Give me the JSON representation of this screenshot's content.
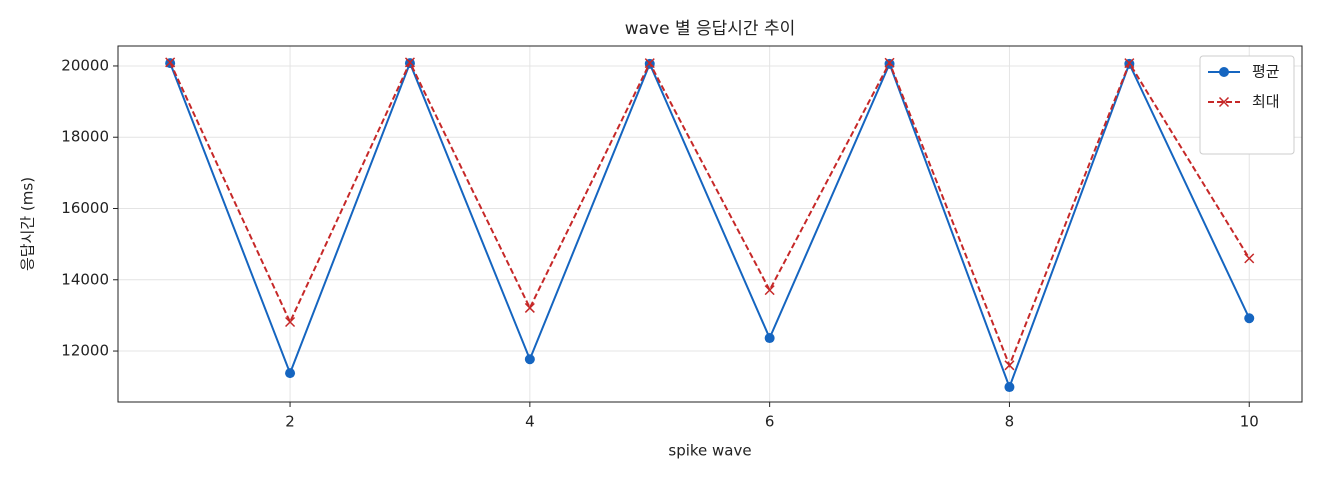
{
  "chart_data": {
    "type": "line",
    "title": "wave 별 응답시간 추이",
    "x_label": "spike wave",
    "y_label": "응답시간 (ms)",
    "x": [
      1,
      2,
      3,
      4,
      5,
      6,
      7,
      8,
      9,
      10
    ],
    "series": [
      {
        "name": "평균",
        "color": "#1565c0",
        "marker": "o",
        "linestyle": "solid",
        "values": [
          20080,
          11380,
          20080,
          11770,
          20060,
          12365,
          20060,
          10990,
          20060,
          12920
        ]
      },
      {
        "name": "최대",
        "color": "#c62828",
        "marker": "x",
        "linestyle": "dashed",
        "values": [
          20100,
          12815,
          20100,
          13210,
          20080,
          13710,
          20090,
          11600,
          20080,
          14600
        ]
      }
    ],
    "xlim": [
      0.565,
      10.44
    ],
    "ylim": [
      10570,
      20560
    ],
    "xticks": [
      2,
      4,
      6,
      8,
      10
    ],
    "yticks": [
      12000,
      14000,
      16000,
      18000,
      20000
    ],
    "grid": true,
    "legend": "upper right"
  }
}
